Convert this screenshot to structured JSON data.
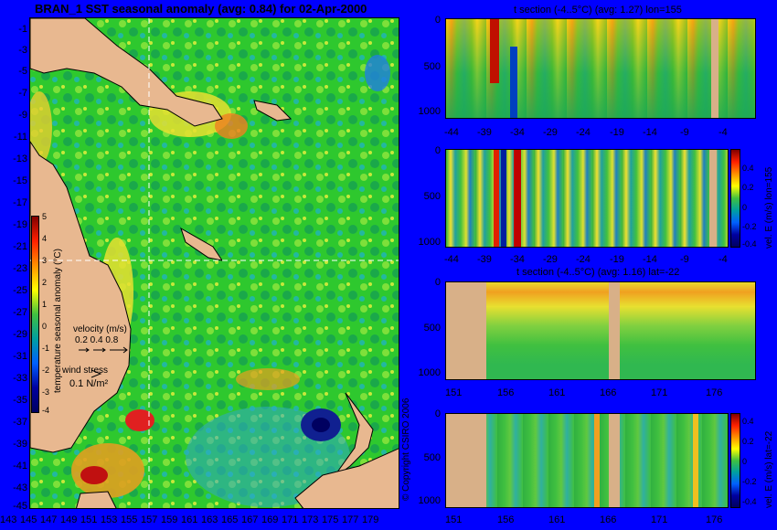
{
  "main_map": {
    "title": "BRAN_1 SST seasonal anomaly (avg: 0.84) for 02-Apr-2000",
    "y_ticks": [
      "-1",
      "-3",
      "-5",
      "-7",
      "-9",
      "-11",
      "-13",
      "-15",
      "-17",
      "-19",
      "-21",
      "-23",
      "-25",
      "-27",
      "-29",
      "-31",
      "-33",
      "-35",
      "-37",
      "-39",
      "-41",
      "-43",
      "-45"
    ],
    "x_ticks": [
      "143",
      "145",
      "147",
      "149",
      "151",
      "153",
      "155",
      "157",
      "159",
      "161",
      "163",
      "165",
      "167",
      "169",
      "171",
      "173",
      "175",
      "177",
      "179"
    ],
    "colorbar": {
      "label": "temperature seasonal anomaly (°C)",
      "ticks": [
        "5",
        "4",
        "3",
        "2",
        "1",
        "0",
        "-1",
        "-2",
        "-3",
        "-4"
      ]
    },
    "velocity_legend": {
      "label": "velocity (m/s)",
      "scale": "0.2 0.4 0.8"
    },
    "wind_legend": {
      "label": "wind stress",
      "value": "0.1 N/m²"
    },
    "copyright": "© Copyright CSIRO 2006"
  },
  "panel1": {
    "title": "t section (-4..5°C) (avg: 1.27) lon=155",
    "y_ticks": [
      "0",
      "500",
      "1000"
    ],
    "x_ticks": [
      "-44",
      "-39",
      "-34",
      "-29",
      "-24",
      "-19",
      "-14",
      "-9",
      "-4"
    ]
  },
  "panel2": {
    "y_ticks": [
      "0",
      "500",
      "1000"
    ],
    "x_ticks": [
      "-44",
      "-39",
      "-34",
      "-29",
      "-24",
      "-19",
      "-14",
      "-9",
      "-4"
    ],
    "colorbar": {
      "label": "vel. E (m/s) lon=155",
      "ticks": [
        "0.4",
        "0.2",
        "0",
        "-0.2",
        "-0.4"
      ]
    }
  },
  "panel3": {
    "title": "t section (-4..5°C) (avg: 1.16) lat=-22",
    "y_ticks": [
      "0",
      "500",
      "1000"
    ],
    "x_ticks": [
      "151",
      "156",
      "161",
      "166",
      "171",
      "176"
    ]
  },
  "panel4": {
    "y_ticks": [
      "0",
      "500",
      "1000"
    ],
    "x_ticks": [
      "151",
      "156",
      "161",
      "166",
      "171",
      "176"
    ],
    "colorbar": {
      "label": "vel. E (m/s) lat=-22",
      "ticks": [
        "0.4",
        "0.2",
        "0",
        "-0.2",
        "-0.4"
      ]
    }
  }
}
